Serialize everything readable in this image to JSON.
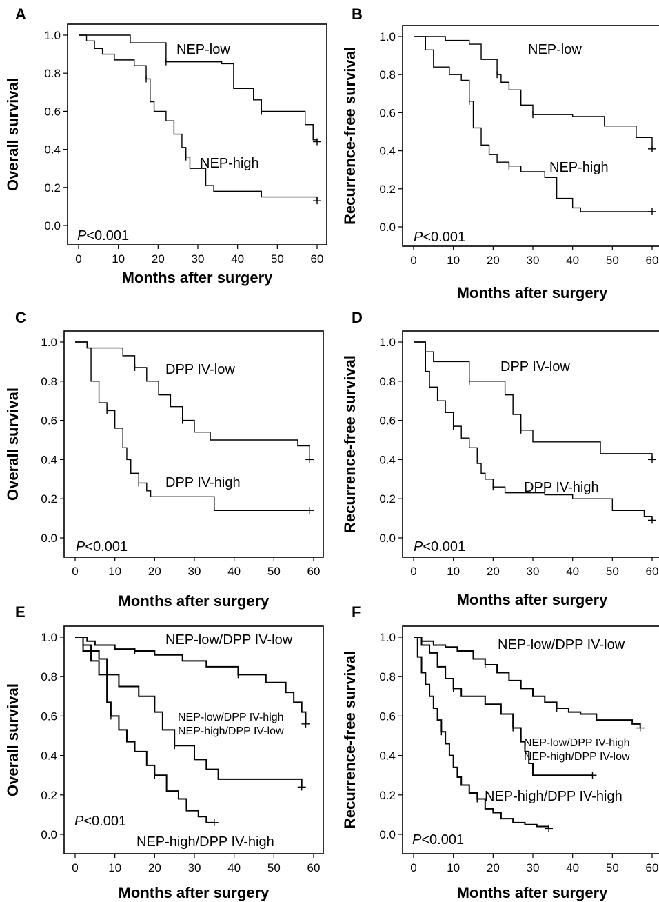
{
  "chart_data": [
    {
      "panel": "A",
      "type": "line",
      "step": true,
      "ylabel": "Overall survival",
      "xlabel": "Months after surgery",
      "xlim": [
        0,
        60
      ],
      "ylim": [
        0,
        1
      ],
      "xticks": [
        "0",
        "10",
        "20",
        "30",
        "40",
        "50",
        "60"
      ],
      "yticks": [
        "0.0",
        "0.2",
        "0.4",
        "0.6",
        "0.8",
        "1.0"
      ],
      "pvalue": "<0.001",
      "series": [
        {
          "label_text": "NEP-low",
          "x": [
            0,
            13,
            15,
            22,
            36,
            39,
            44,
            46,
            56,
            57,
            59,
            60
          ],
          "y": [
            1.0,
            0.96,
            0.96,
            0.86,
            0.85,
            0.72,
            0.66,
            0.6,
            0.6,
            0.53,
            0.45,
            0.44
          ]
        },
        {
          "label_text": "NEP-high",
          "x": [
            0,
            2,
            4,
            6,
            9,
            14,
            17,
            18,
            19,
            22,
            24,
            26,
            27,
            28,
            32,
            34,
            36,
            46,
            60
          ],
          "y": [
            1.0,
            0.97,
            0.93,
            0.9,
            0.87,
            0.84,
            0.77,
            0.65,
            0.6,
            0.55,
            0.48,
            0.41,
            0.36,
            0.3,
            0.21,
            0.18,
            0.18,
            0.15,
            0.13
          ]
        }
      ]
    },
    {
      "panel": "B",
      "type": "line",
      "step": true,
      "ylabel": "Recurrence-free survival",
      "xlabel": "Months after surgery",
      "xlim": [
        0,
        60
      ],
      "ylim": [
        0,
        1
      ],
      "xticks": [
        "0",
        "10",
        "20",
        "30",
        "40",
        "50",
        "60"
      ],
      "yticks": [
        "0.0",
        "0.2",
        "0.4",
        "0.6",
        "0.8",
        "1.0"
      ],
      "pvalue": "<0.001",
      "series": [
        {
          "label_text": "NEP-low",
          "x": [
            0,
            8,
            14,
            17,
            21,
            22,
            24,
            27,
            30,
            40,
            48,
            56,
            60
          ],
          "y": [
            1.0,
            0.98,
            0.96,
            0.88,
            0.8,
            0.76,
            0.72,
            0.64,
            0.59,
            0.58,
            0.53,
            0.47,
            0.41
          ]
        },
        {
          "label_text": "NEP-high",
          "x": [
            0,
            3,
            5,
            9,
            12,
            14,
            15,
            17,
            19,
            21,
            24,
            27,
            33,
            36,
            40,
            42,
            60
          ],
          "y": [
            1.0,
            0.93,
            0.84,
            0.8,
            0.77,
            0.66,
            0.52,
            0.43,
            0.38,
            0.34,
            0.32,
            0.29,
            0.26,
            0.15,
            0.1,
            0.08,
            0.08
          ]
        }
      ]
    },
    {
      "panel": "C",
      "type": "line",
      "step": true,
      "ylabel": "Overall survival",
      "xlabel": "Months after surgery",
      "xlim": [
        0,
        60
      ],
      "ylim": [
        0,
        1
      ],
      "xticks": [
        "0",
        "10",
        "20",
        "30",
        "40",
        "50",
        "60"
      ],
      "yticks": [
        "0.0",
        "0.2",
        "0.4",
        "0.6",
        "0.8",
        "1.0"
      ],
      "pvalue": "<0.001",
      "series": [
        {
          "label_text": "DPP IV-low",
          "x": [
            0,
            3,
            12,
            15,
            18,
            21,
            24,
            27,
            30,
            34,
            56,
            59
          ],
          "y": [
            1.0,
            0.97,
            0.93,
            0.87,
            0.8,
            0.73,
            0.67,
            0.6,
            0.54,
            0.5,
            0.47,
            0.4
          ]
        },
        {
          "label_text": "DPP IV-high",
          "x": [
            0,
            3,
            4,
            6,
            8,
            10,
            12,
            13,
            14,
            16,
            18,
            19,
            34,
            35,
            59
          ],
          "y": [
            1.0,
            0.97,
            0.8,
            0.69,
            0.65,
            0.56,
            0.46,
            0.4,
            0.33,
            0.28,
            0.24,
            0.21,
            0.21,
            0.14,
            0.14
          ]
        }
      ]
    },
    {
      "panel": "D",
      "type": "line",
      "step": true,
      "ylabel": "Recurrence-free survival",
      "xlabel": "Months after surgery",
      "xlim": [
        0,
        60
      ],
      "ylim": [
        0,
        1
      ],
      "xticks": [
        "0",
        "10",
        "20",
        "30",
        "40",
        "50",
        "60"
      ],
      "yticks": [
        "0.0",
        "0.2",
        "0.4",
        "0.6",
        "0.8",
        "1.0"
      ],
      "pvalue": "<0.001",
      "series": [
        {
          "label_text": "DPP IV-low",
          "x": [
            0,
            3,
            5,
            14,
            23,
            25,
            27,
            30,
            46,
            47,
            60
          ],
          "y": [
            1.0,
            0.95,
            0.9,
            0.8,
            0.73,
            0.63,
            0.55,
            0.49,
            0.49,
            0.43,
            0.4
          ]
        },
        {
          "label_text": "DPP IV-high",
          "x": [
            0,
            3,
            4,
            6,
            8,
            10,
            12,
            14,
            16,
            17,
            18,
            20,
            23,
            33,
            40,
            50,
            58,
            60
          ],
          "y": [
            1.0,
            0.85,
            0.77,
            0.7,
            0.64,
            0.57,
            0.51,
            0.46,
            0.38,
            0.33,
            0.3,
            0.26,
            0.23,
            0.22,
            0.2,
            0.14,
            0.11,
            0.09
          ]
        }
      ]
    },
    {
      "panel": "E",
      "type": "line",
      "step": true,
      "ylabel": "Overall survival",
      "xlabel": "Months after surgery",
      "xlim": [
        0,
        60
      ],
      "ylim": [
        0,
        1
      ],
      "xticks": [
        "0",
        "10",
        "20",
        "30",
        "40",
        "50",
        "60"
      ],
      "yticks": [
        "0.0",
        "0.2",
        "0.4",
        "0.6",
        "0.8",
        "1.0"
      ],
      "pvalue": "<0.001",
      "series": [
        {
          "label_text": "NEP-low/DPP IV-low",
          "x": [
            0,
            3,
            5,
            10,
            15,
            20,
            27,
            33,
            41,
            48,
            53,
            55,
            57,
            58
          ],
          "y": [
            1.0,
            0.98,
            0.96,
            0.94,
            0.93,
            0.91,
            0.88,
            0.85,
            0.81,
            0.77,
            0.72,
            0.67,
            0.62,
            0.56
          ]
        },
        {
          "label_text": "NEP-low/DPP IV-high\nNEP-high/DPP IV-low",
          "x": [
            0,
            2,
            4,
            6,
            8,
            11,
            16,
            20,
            22,
            25,
            30,
            33,
            36,
            44,
            57
          ],
          "y": [
            1.0,
            0.96,
            0.93,
            0.89,
            0.81,
            0.75,
            0.7,
            0.62,
            0.53,
            0.45,
            0.38,
            0.33,
            0.28,
            0.28,
            0.24
          ]
        },
        {
          "label_text": "NEP-high/DPP IV-high",
          "x": [
            0,
            2,
            4,
            6,
            8,
            9,
            11,
            13,
            15,
            18,
            20,
            23,
            26,
            28,
            31,
            33,
            35
          ],
          "y": [
            1.0,
            0.93,
            0.88,
            0.81,
            0.67,
            0.6,
            0.53,
            0.47,
            0.42,
            0.35,
            0.3,
            0.22,
            0.18,
            0.12,
            0.09,
            0.06,
            0.06
          ]
        }
      ]
    },
    {
      "panel": "F",
      "type": "line",
      "step": true,
      "ylabel": "Recurrence-free survival",
      "xlabel": "Months after surgery",
      "xlim": [
        0,
        60
      ],
      "ylim": [
        0,
        1
      ],
      "xticks": [
        "0",
        "10",
        "20",
        "30",
        "40",
        "50",
        "60"
      ],
      "yticks": [
        "0.0",
        "0.2",
        "0.4",
        "0.6",
        "0.8",
        "1.0"
      ],
      "pvalue": "<0.001",
      "series": [
        {
          "label_text": "NEP-low/DPP IV-low",
          "x": [
            0,
            2,
            5,
            8,
            11,
            15,
            18,
            21,
            24,
            27,
            30,
            33,
            36,
            39,
            42,
            46,
            50,
            55,
            57
          ],
          "y": [
            1.0,
            0.98,
            0.96,
            0.95,
            0.93,
            0.89,
            0.86,
            0.82,
            0.78,
            0.74,
            0.7,
            0.67,
            0.64,
            0.62,
            0.61,
            0.58,
            0.58,
            0.56,
            0.54
          ]
        },
        {
          "label_text": "NEP-low/DPP IV-high\nNEP-high/DPP IV-low",
          "x": [
            0,
            2,
            4,
            6,
            8,
            10,
            12,
            15,
            18,
            22,
            25,
            27,
            28,
            29,
            30,
            33,
            45
          ],
          "y": [
            1.0,
            0.96,
            0.92,
            0.85,
            0.79,
            0.74,
            0.7,
            0.7,
            0.66,
            0.61,
            0.54,
            0.47,
            0.42,
            0.36,
            0.3,
            0.3,
            0.3
          ]
        },
        {
          "label_text": "NEP-high/DPP IV-high",
          "x": [
            0,
            1,
            2,
            3,
            4,
            5,
            6,
            7,
            8,
            9,
            10,
            11,
            12,
            14,
            16,
            18,
            20,
            22,
            25,
            28,
            31,
            34
          ],
          "y": [
            1.0,
            0.9,
            0.82,
            0.76,
            0.7,
            0.64,
            0.58,
            0.52,
            0.46,
            0.4,
            0.34,
            0.29,
            0.25,
            0.21,
            0.18,
            0.13,
            0.11,
            0.08,
            0.06,
            0.05,
            0.04,
            0.03
          ]
        }
      ]
    }
  ]
}
